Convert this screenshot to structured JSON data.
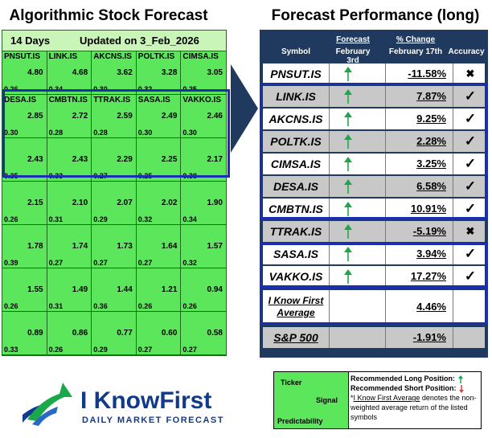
{
  "left_title": "Algorithmic Stock Forecast",
  "right_title": "Forecast Performance (long)",
  "grid": {
    "days": "14 Days",
    "updated": "Updated on 3_Feb_2026",
    "cells": [
      {
        "ticker": "PNSUT.IS",
        "signal": "4.80",
        "predictability": "0.26"
      },
      {
        "ticker": "LINK.IS",
        "signal": "4.68",
        "predictability": "0.34"
      },
      {
        "ticker": "AKCNS.IS",
        "signal": "3.62",
        "predictability": "0.30"
      },
      {
        "ticker": "POLTK.IS",
        "signal": "3.28",
        "predictability": "0.32"
      },
      {
        "ticker": "CIMSA.IS",
        "signal": "3.05",
        "predictability": "0.25"
      },
      {
        "ticker": "DESA.IS",
        "signal": "2.85",
        "predictability": "0.30"
      },
      {
        "ticker": "CMBTN.IS",
        "signal": "2.72",
        "predictability": "0.28"
      },
      {
        "ticker": "TTRAK.IS",
        "signal": "2.59",
        "predictability": "0.28"
      },
      {
        "ticker": "SASA.IS",
        "signal": "2.49",
        "predictability": "0.30"
      },
      {
        "ticker": "VAKKO.IS",
        "signal": "2.46",
        "predictability": "0.30"
      },
      {
        "ticker": "",
        "signal": "2.43",
        "predictability": "0.35"
      },
      {
        "ticker": "",
        "signal": "2.43",
        "predictability": "0.33"
      },
      {
        "ticker": "",
        "signal": "2.29",
        "predictability": "0.27"
      },
      {
        "ticker": "",
        "signal": "2.25",
        "predictability": "0.25"
      },
      {
        "ticker": "",
        "signal": "2.17",
        "predictability": "0.38"
      },
      {
        "ticker": "",
        "signal": "2.15",
        "predictability": "0.26"
      },
      {
        "ticker": "",
        "signal": "2.10",
        "predictability": "0.31"
      },
      {
        "ticker": "",
        "signal": "2.07",
        "predictability": "0.29"
      },
      {
        "ticker": "",
        "signal": "2.02",
        "predictability": "0.32"
      },
      {
        "ticker": "",
        "signal": "1.90",
        "predictability": "0.34"
      },
      {
        "ticker": "",
        "signal": "1.78",
        "predictability": "0.39"
      },
      {
        "ticker": "",
        "signal": "1.74",
        "predictability": "0.27"
      },
      {
        "ticker": "",
        "signal": "1.73",
        "predictability": "0.27"
      },
      {
        "ticker": "",
        "signal": "1.64",
        "predictability": "0.27"
      },
      {
        "ticker": "",
        "signal": "1.57",
        "predictability": "0.32"
      },
      {
        "ticker": "",
        "signal": "1.55",
        "predictability": "0.26"
      },
      {
        "ticker": "",
        "signal": "1.49",
        "predictability": "0.31"
      },
      {
        "ticker": "",
        "signal": "1.44",
        "predictability": "0.36"
      },
      {
        "ticker": "",
        "signal": "1.21",
        "predictability": "0.26"
      },
      {
        "ticker": "",
        "signal": "0.94",
        "predictability": "0.26"
      },
      {
        "ticker": "",
        "signal": "0.89",
        "predictability": "0.33"
      },
      {
        "ticker": "",
        "signal": "0.86",
        "predictability": "0.26"
      },
      {
        "ticker": "",
        "signal": "0.77",
        "predictability": "0.29"
      },
      {
        "ticker": "",
        "signal": "0.60",
        "predictability": "0.27"
      },
      {
        "ticker": "",
        "signal": "0.58",
        "predictability": "0.27"
      }
    ]
  },
  "table": {
    "col_symbol": "Symbol",
    "col_forecast": "Forecast",
    "col_forecast_date": "February 3rd",
    "col_change": "% Change",
    "col_change_date": "February 17th",
    "col_accuracy": "Accuracy",
    "rows": [
      {
        "symbol": "PNSUT.IS",
        "change": "-11.58%",
        "accurate": false
      },
      {
        "symbol": "LINK.IS",
        "change": "7.87%",
        "accurate": true
      },
      {
        "symbol": "AKCNS.IS",
        "change": "9.25%",
        "accurate": true
      },
      {
        "symbol": "POLTK.IS",
        "change": "2.28%",
        "accurate": true
      },
      {
        "symbol": "CIMSA.IS",
        "change": "3.25%",
        "accurate": true
      },
      {
        "symbol": "DESA.IS",
        "change": "6.58%",
        "accurate": true
      },
      {
        "symbol": "CMBTN.IS",
        "change": "10.91%",
        "accurate": true
      },
      {
        "symbol": "TTRAK.IS",
        "change": "-5.19%",
        "accurate": false
      },
      {
        "symbol": "SASA.IS",
        "change": "3.94%",
        "accurate": true
      },
      {
        "symbol": "VAKKO.IS",
        "change": "17.27%",
        "accurate": true
      }
    ],
    "average_label_1": "I Know First",
    "average_label_2": "Average",
    "average_change": "4.46%",
    "sp_label": "S&P 500",
    "sp_change": "-1.91%"
  },
  "legend": {
    "ticker": "Ticker",
    "signal": "Signal",
    "predictability": "Predictability",
    "long_text": "Recommended Long Position:",
    "short_text": "Recommended Short Position:",
    "avg_link": "I Know First Average",
    "avg_prefix": "*",
    "avg_desc": " denotes the non-weighted average return of the listed symbols"
  },
  "logo": {
    "brand": "I KnowFirst",
    "tagline": "DAILY MARKET FORECAST"
  },
  "colors": {
    "cell_green": "#5ce65c",
    "header_green": "#c9f5b8",
    "table_navy": "#1f3a5e",
    "highlight_blue": "#1a2fb0",
    "up_arrow": "#1aa84a",
    "down_arrow": "#e03a3a",
    "logo_blue": "#123a8c"
  }
}
